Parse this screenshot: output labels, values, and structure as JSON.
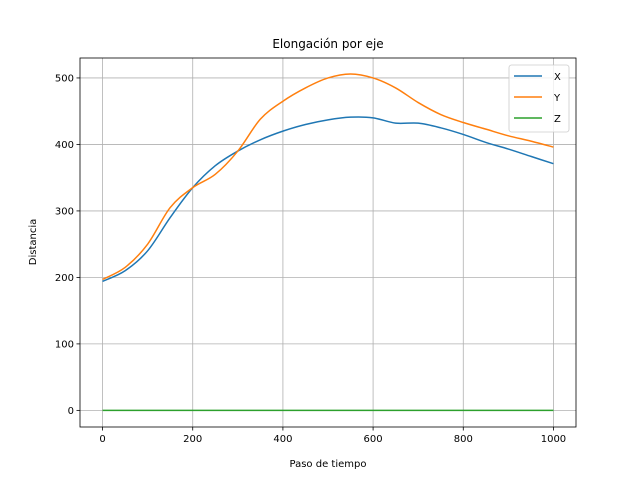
{
  "chart_data": {
    "type": "line",
    "title": "Elongación por eje",
    "xlabel": "Paso de tiempo",
    "ylabel": "Distancia",
    "xlim": [
      -50,
      1050
    ],
    "ylim": [
      -25,
      530
    ],
    "xticks": [
      0,
      200,
      400,
      600,
      800,
      1000
    ],
    "yticks": [
      0,
      100,
      200,
      300,
      400,
      500
    ],
    "grid": true,
    "legend_position": "top-right",
    "x": [
      0,
      50,
      100,
      150,
      200,
      250,
      300,
      350,
      400,
      450,
      500,
      550,
      600,
      650,
      700,
      750,
      800,
      850,
      900,
      950,
      1000
    ],
    "series": [
      {
        "name": "X",
        "color": "#1f77b4",
        "values": [
          194,
          210,
          240,
          290,
          335,
          368,
          390,
          407,
          420,
          430,
          437,
          441,
          440,
          432,
          432,
          425,
          415,
          403,
          393,
          382,
          371
        ]
      },
      {
        "name": "Y",
        "color": "#ff7f0e",
        "values": [
          197,
          215,
          250,
          305,
          335,
          355,
          390,
          438,
          465,
          485,
          500,
          506,
          500,
          485,
          463,
          445,
          433,
          423,
          413,
          405,
          396
        ]
      },
      {
        "name": "Z",
        "color": "#2ca02c",
        "values": [
          0,
          0,
          0,
          0,
          0,
          0,
          0,
          0,
          0,
          0,
          0,
          0,
          0,
          0,
          0,
          0,
          0,
          0,
          0,
          0,
          0
        ]
      }
    ]
  }
}
